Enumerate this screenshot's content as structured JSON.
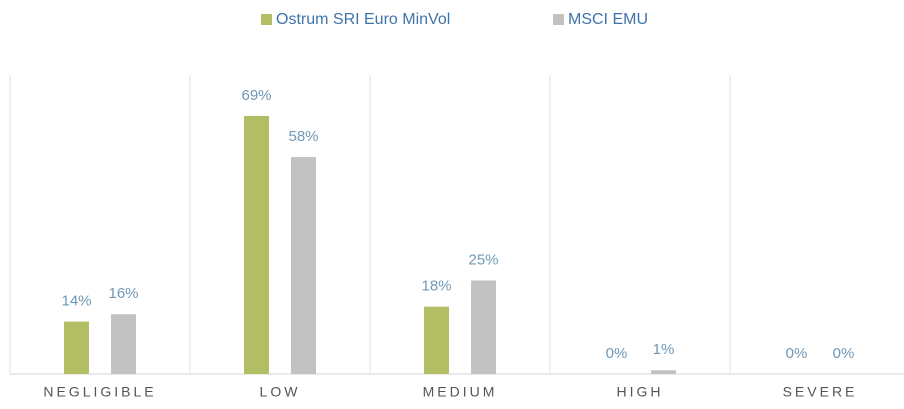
{
  "chart_data": {
    "type": "bar",
    "categories": [
      "NEGLIGIBLE",
      "LOW",
      "MEDIUM",
      "HIGH",
      "SEVERE"
    ],
    "series": [
      {
        "name": "Ostrum SRI Euro MinVol",
        "color": "#b3bd63",
        "values": [
          14,
          69,
          18,
          0,
          0
        ],
        "value_labels": [
          "14%",
          "69%",
          "18%",
          "0%",
          "0%"
        ]
      },
      {
        "name": "MSCI EMU",
        "color": "#c2c2c2",
        "values": [
          16,
          58,
          25,
          1,
          0
        ],
        "value_labels": [
          "16%",
          "58%",
          "25%",
          "1%",
          "0%"
        ]
      }
    ],
    "legend": "top"
  }
}
